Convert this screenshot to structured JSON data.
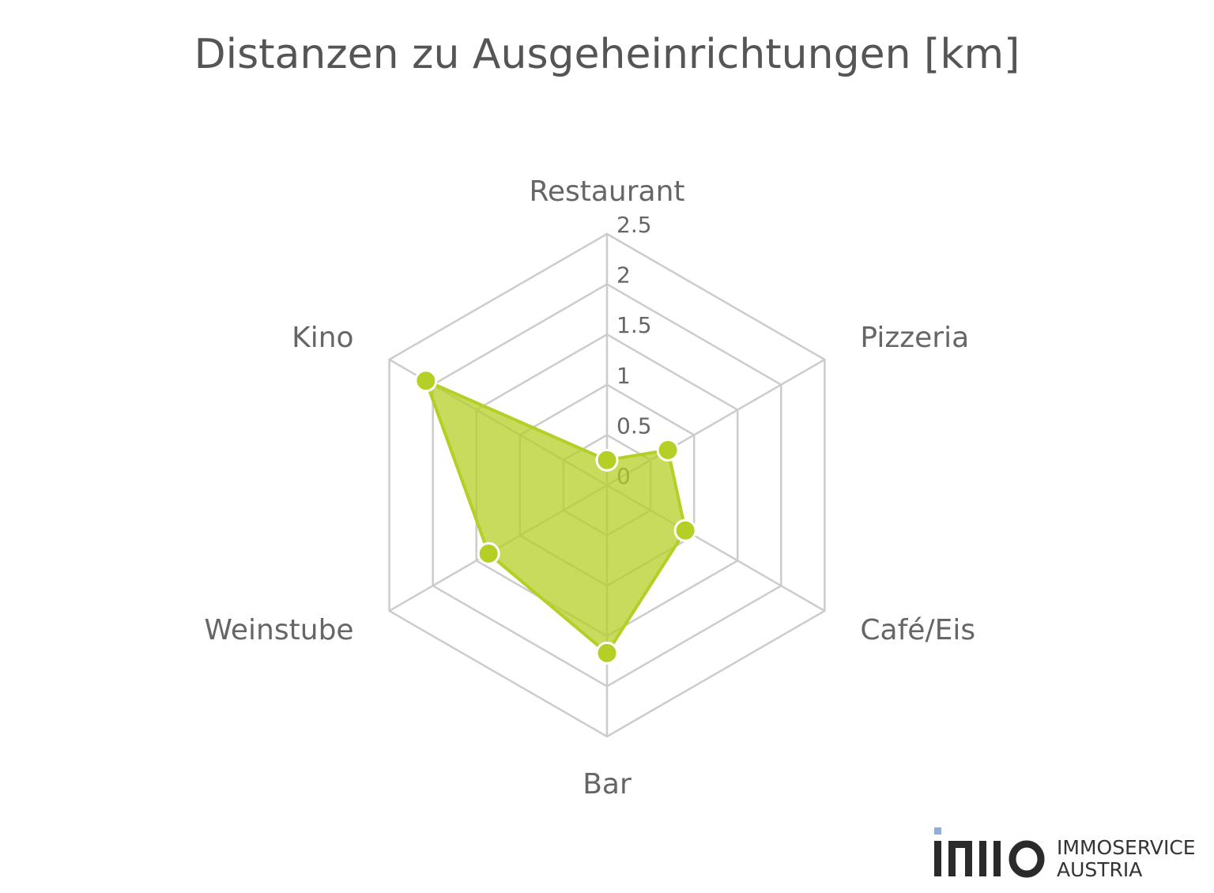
{
  "chart_data": {
    "type": "radar",
    "title": "Distanzen zu Ausgeheinrichtungen [km]",
    "categories": [
      "Restaurant",
      "Pizzeria",
      "Café/Eis",
      "Bar",
      "Weinstube",
      "Kino"
    ],
    "values": [
      0.25,
      0.7,
      0.9,
      1.67,
      1.36,
      2.08
    ],
    "color": "#b5cf26",
    "rlim": [
      0,
      2.5
    ],
    "rticks": [
      0,
      0.5,
      1,
      1.5,
      2,
      2.5
    ],
    "grid": true
  },
  "logo": {
    "line1": "IMMOSERVICE",
    "line2": "AUSTRIA"
  }
}
